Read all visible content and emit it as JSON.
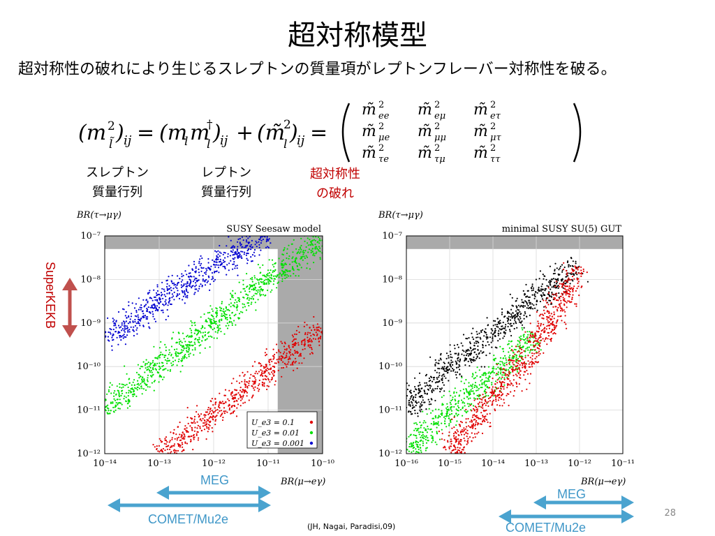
{
  "slide": {
    "title": "超対称模型",
    "intro": "超対称性の破れにより生じるスレプトンの質量項がレプトンフレーバー対称性を破る。",
    "number": "28",
    "citation": "(JH, Nagai, Paradisi,09)"
  },
  "equation": {
    "lhs": "(m²_l̃)_ij",
    "term1": "(m_l m_l†)_ij",
    "term2": "(m̃²_l)_ij",
    "matrix": [
      [
        "m̃²_ee",
        "m̃²_eμ",
        "m̃²_eτ"
      ],
      [
        "m̃²_μe",
        "m̃²_μμ",
        "m̃²_μτ"
      ],
      [
        "m̃²_τe",
        "m̃²_τμ",
        "m̃²_ττ"
      ]
    ]
  },
  "matrix_labels": {
    "slepton": [
      "スレプトン",
      "質量行列"
    ],
    "lepton": [
      "レプトン",
      "質量行列"
    ],
    "susy_breaking": [
      "超対称性",
      "の破れ"
    ]
  },
  "arrows": {
    "superkekb": "SuperKEKB",
    "meg": "MEG",
    "comet": "COMET/Mu2e"
  },
  "colors": {
    "series_red": "#e00000",
    "series_green": "#00e000",
    "series_blue": "#0000d0",
    "series_black": "#000000",
    "excluded_band": "#aaaaaa",
    "arrow_blue": "#4aa3cf",
    "arrow_red": "#c0504d"
  },
  "chart_data": [
    {
      "type": "scatter",
      "title": "SUSY Seesaw model",
      "xlabel": "BR(μ→eγ)",
      "ylabel": "BR(τ→μγ)",
      "xscale": "log",
      "yscale": "log",
      "xlim": [
        1e-14,
        1e-10
      ],
      "ylim": [
        1e-12,
        1e-07
      ],
      "xticks": [
        "10⁻¹⁴",
        "10⁻¹³",
        "10⁻¹²",
        "10⁻¹¹",
        "10⁻¹⁰"
      ],
      "yticks": [
        "10⁻¹²",
        "10⁻¹¹",
        "10⁻¹⁰",
        "10⁻⁹",
        "10⁻⁸",
        "10⁻⁷"
      ],
      "grid": true,
      "excluded_regions": [
        {
          "axis": "y",
          "from": 5e-08,
          "to": 1e-07
        },
        {
          "axis": "x",
          "from": 1.5e-11,
          "to": 1e-10
        }
      ],
      "legend": {
        "position": "bottom-right",
        "entries": [
          {
            "label": "U_e3 = 0.1",
            "color": "#e00000"
          },
          {
            "label": "U_e3 = 0.01",
            "color": "#00e000"
          },
          {
            "label": "U_e3 = 0.001",
            "color": "#0000d0"
          }
        ]
      },
      "series": [
        {
          "name": "U_e3 = 0.1",
          "color": "#e00000",
          "x": [
            1e-13,
            3e-13,
            1e-12,
            3e-12,
            1e-11,
            3e-11,
            1e-10
          ],
          "y": [
            1e-12,
            2.5e-12,
            8e-12,
            2.5e-11,
            8e-11,
            2.5e-10,
            7e-10
          ]
        },
        {
          "name": "U_e3 = 0.01",
          "color": "#00e000",
          "x": [
            1e-14,
            1e-13,
            1e-12,
            1e-11,
            1e-10
          ],
          "y": [
            1e-11,
            1e-10,
            1e-09,
            1e-08,
            8e-08
          ]
        },
        {
          "name": "U_e3 = 0.001",
          "color": "#0000d0",
          "x": [
            1e-14,
            1e-13,
            1e-12,
            1e-11
          ],
          "y": [
            4e-10,
            3e-09,
            2e-08,
            1e-07
          ]
        }
      ]
    },
    {
      "type": "scatter",
      "title": "minimal SUSY SU(5) GUT",
      "xlabel": "BR(μ→eγ)",
      "ylabel": "BR(τ→μγ)",
      "xscale": "log",
      "yscale": "log",
      "xlim": [
        1e-16,
        1e-11
      ],
      "ylim": [
        1e-12,
        1e-07
      ],
      "xticks": [
        "10⁻¹⁶",
        "10⁻¹⁵",
        "10⁻¹⁴",
        "10⁻¹³",
        "10⁻¹²",
        "10⁻¹¹"
      ],
      "yticks": [
        "10⁻¹²",
        "10⁻¹¹",
        "10⁻¹⁰",
        "10⁻⁹",
        "10⁻⁸",
        "10⁻⁷"
      ],
      "grid": true,
      "excluded_regions": [
        {
          "axis": "y",
          "from": 5e-08,
          "to": 1e-07
        }
      ],
      "series": [
        {
          "color": "#000000",
          "x": [
            1e-16,
            1e-15,
            1e-14,
            1e-13,
            1e-12
          ],
          "y": [
            1e-11,
            1e-10,
            6e-10,
            4e-09,
            2e-08
          ]
        },
        {
          "color": "#00e000",
          "x": [
            1e-16,
            1e-15,
            1e-14,
            1e-13
          ],
          "y": [
            1e-12,
            1e-11,
            6e-11,
            5e-10
          ]
        },
        {
          "color": "#e00000",
          "x": [
            1e-15,
            1e-14,
            1e-13,
            1e-12
          ],
          "y": [
            1e-12,
            2e-11,
            3e-10,
            2e-08
          ]
        }
      ]
    }
  ]
}
